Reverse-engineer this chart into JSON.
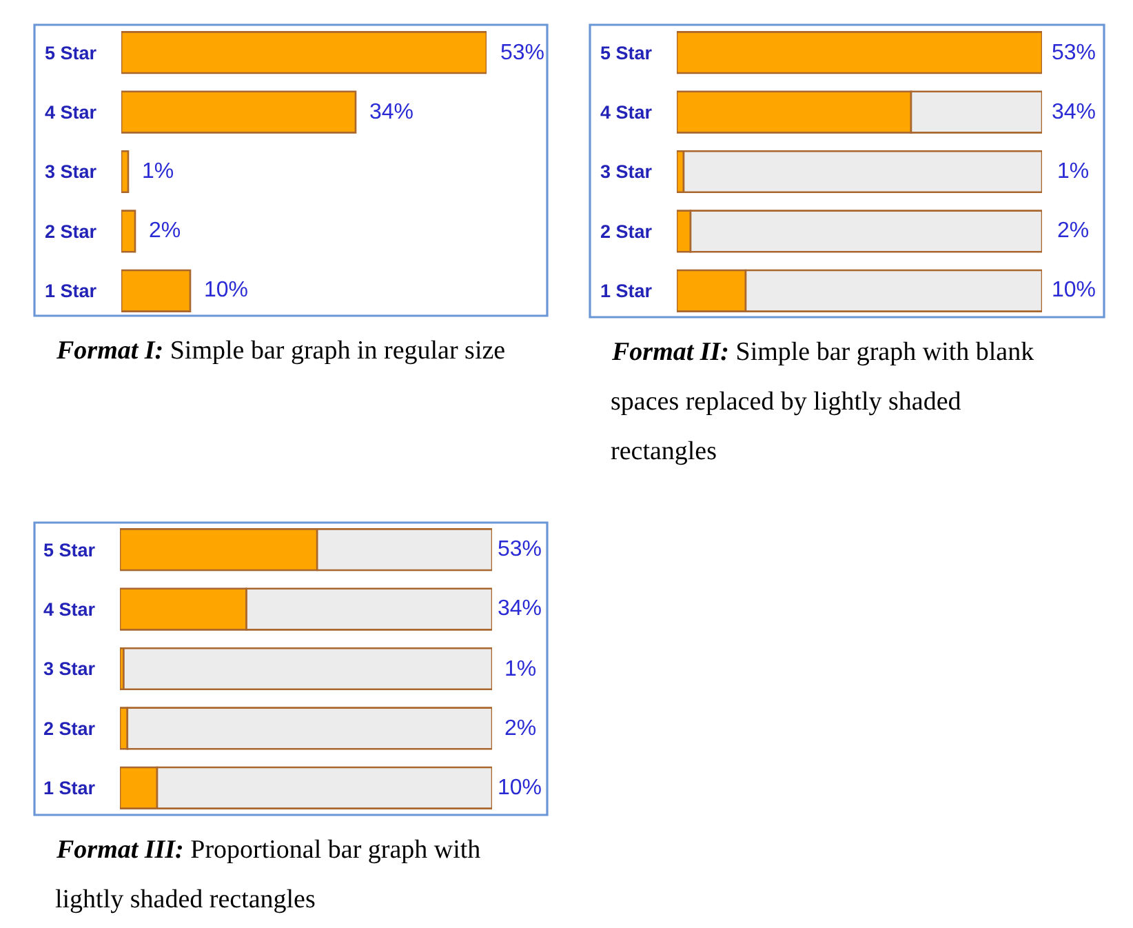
{
  "chart_data": [
    {
      "type": "bar",
      "orientation": "horizontal",
      "title": "Format I: Simple bar graph in regular size",
      "categories": [
        "5 Star",
        "4 Star",
        "3 Star",
        "2 Star",
        "1 Star"
      ],
      "series": [
        {
          "color": "#ffa500",
          "values": [
            53,
            34,
            1,
            2,
            10
          ],
          "value_labels": [
            "53%",
            "34%",
            "1%",
            "2%",
            "10%"
          ]
        }
      ],
      "xlim": [
        0,
        53
      ],
      "tick_labels": "y"
    },
    {
      "type": "bar",
      "orientation": "horizontal",
      "stacked": true,
      "title": "Format II: Simple bar graph with blank spaces replaced by lightly shaded rectangles",
      "categories": [
        "5 Star",
        "4 Star",
        "3 Star",
        "2 Star",
        "1 Star"
      ],
      "series": [
        {
          "color": "#ffa500",
          "values": [
            53,
            34,
            1,
            2,
            10
          ],
          "value_labels": [
            "53%",
            "34%",
            "1%",
            "2%",
            "10%"
          ]
        },
        {
          "color": "#ececec",
          "values": [
            null,
            19,
            52,
            51,
            43
          ]
        }
      ],
      "xlim": [
        0,
        53
      ],
      "tick_labels": "y"
    },
    {
      "type": "bar",
      "orientation": "horizontal",
      "stacked": true,
      "title": "Format III: Proportional bar graph with lightly shaded rectangles",
      "categories": [
        "5 Star",
        "4 Star",
        "3 Star",
        "2 Star",
        "1 Star"
      ],
      "series": [
        {
          "color": "#ffa500",
          "values": [
            53,
            34,
            1,
            2,
            10
          ],
          "value_labels": [
            "53%",
            "34%",
            "1%",
            "2%",
            "10%"
          ]
        },
        {
          "color": "#ececec",
          "values": [
            47,
            66,
            99,
            98,
            90
          ]
        }
      ],
      "xlim": [
        0,
        100
      ],
      "tick_labels": "y"
    }
  ]
}
